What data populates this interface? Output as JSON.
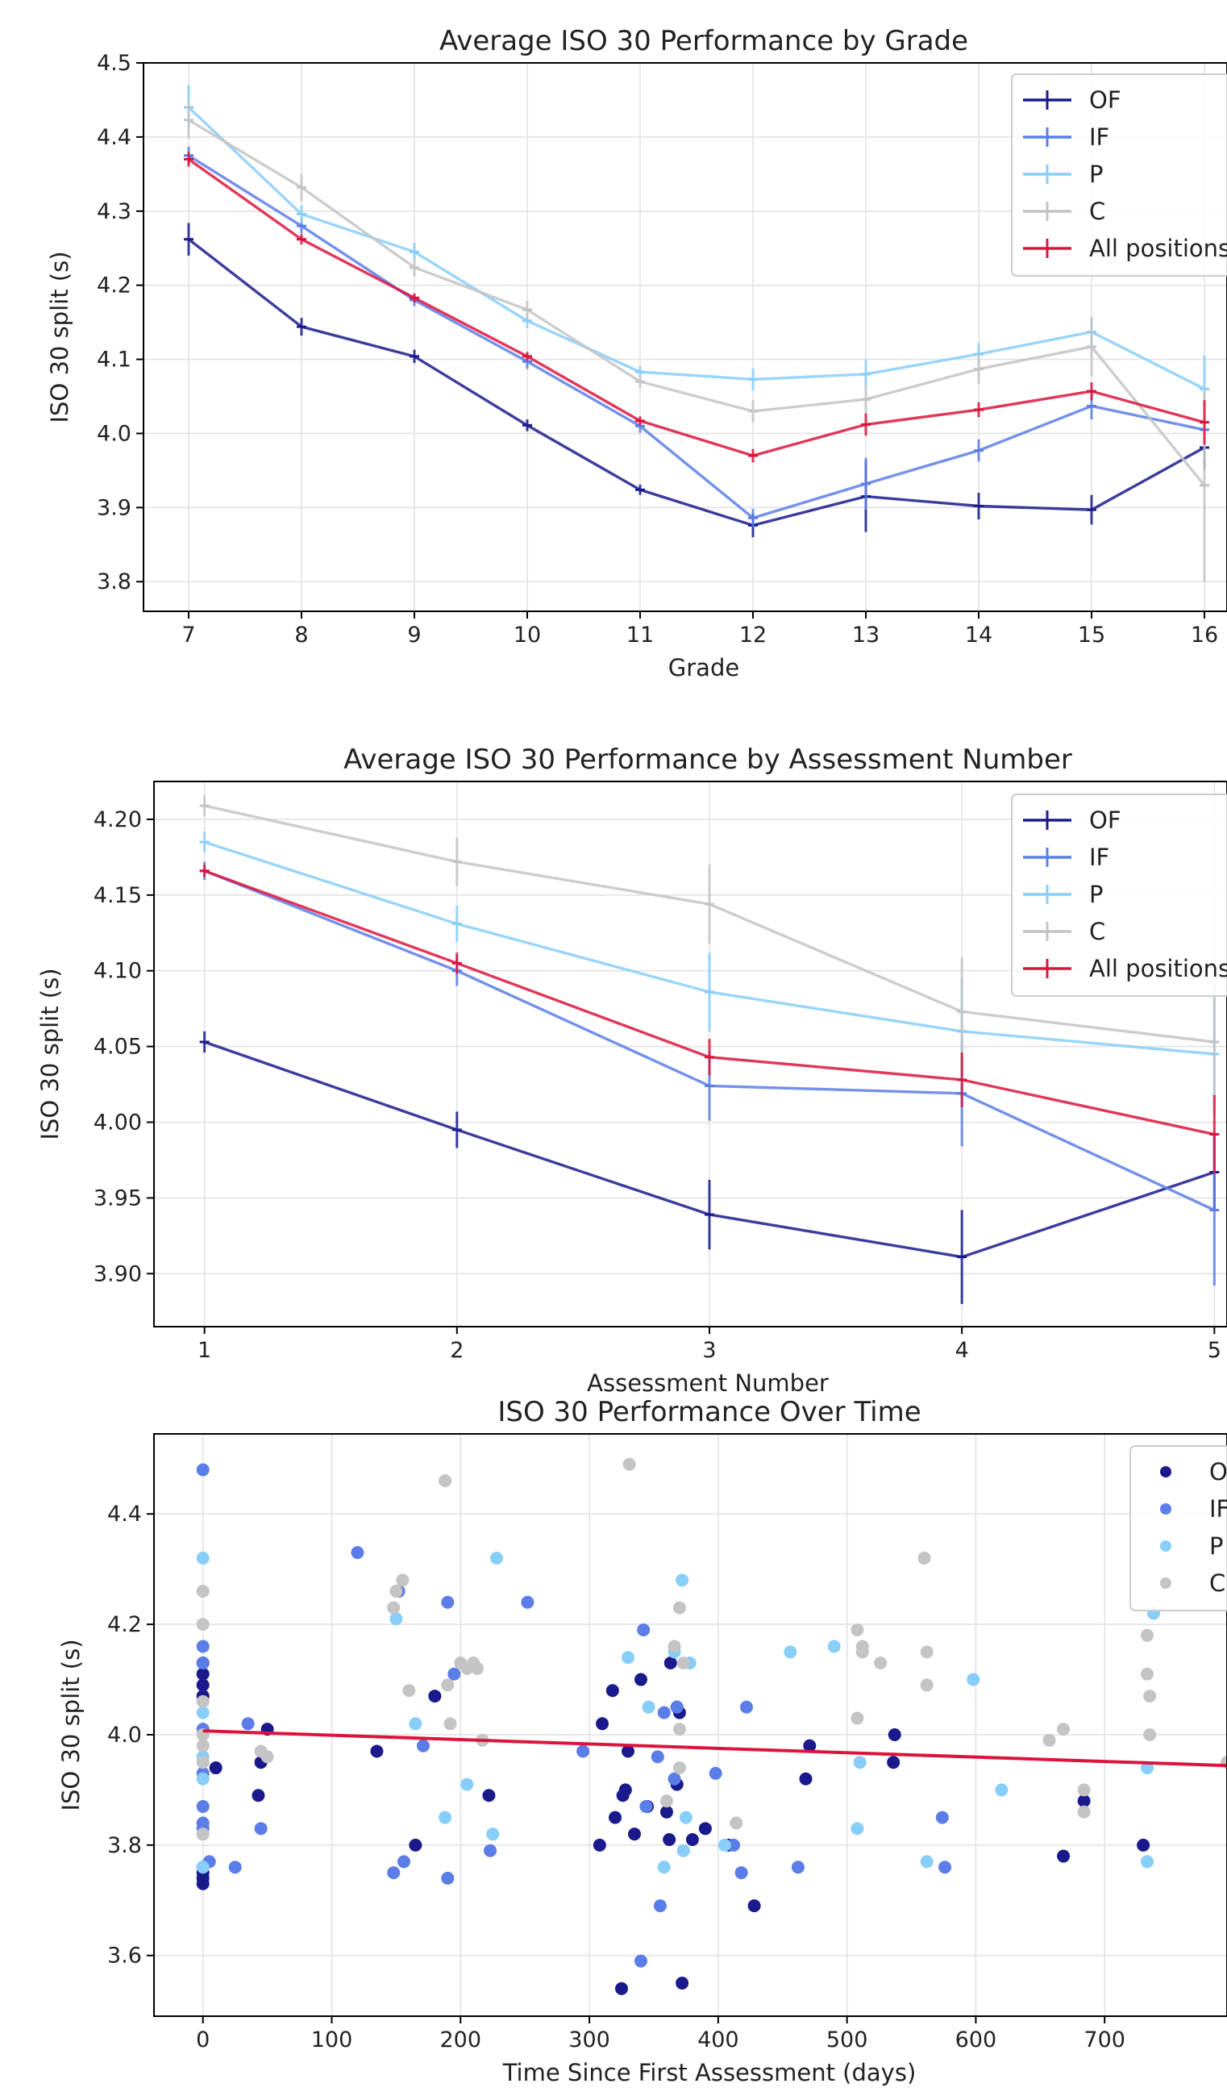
{
  "chart_data": [
    {
      "type": "line",
      "title": "Average ISO 30 Performance by Grade",
      "xlabel": "Grade",
      "ylabel": "ISO 30 split (s)",
      "x": [
        7,
        8,
        9,
        10,
        11,
        12,
        13,
        14,
        15,
        16
      ],
      "xlim": [
        6.6,
        16.2
      ],
      "ylim": [
        3.76,
        4.5
      ],
      "xticks": [
        7,
        8,
        9,
        10,
        11,
        12,
        13,
        14,
        15,
        16
      ],
      "yticks": [
        3.8,
        3.9,
        4.0,
        4.1,
        4.2,
        4.3,
        4.4,
        4.5
      ],
      "ytick_labels": [
        "3.8",
        "3.9",
        "4.0",
        "4.1",
        "4.2",
        "4.3",
        "4.4",
        "4.5"
      ],
      "grid": true,
      "legend_position": "top-right",
      "series": [
        {
          "name": "OF",
          "color": "#1a1a8c",
          "values": [
            4.262,
            4.144,
            4.104,
            4.011,
            3.924,
            3.876,
            3.915,
            3.902,
            3.897,
            3.981
          ],
          "errors": [
            0.022,
            0.012,
            0.009,
            0.008,
            0.007,
            0.016,
            0.048,
            0.018,
            0.02,
            0.03
          ]
        },
        {
          "name": "IF",
          "color": "#5b7de8",
          "values": [
            4.375,
            4.28,
            4.18,
            4.097,
            4.01,
            3.886,
            3.932,
            3.977,
            4.037,
            4.005
          ],
          "errors": [
            0.012,
            0.01,
            0.008,
            0.01,
            0.009,
            0.012,
            0.035,
            0.015,
            0.018,
            0.04
          ]
        },
        {
          "name": "P",
          "color": "#87cefa",
          "values": [
            4.44,
            4.296,
            4.245,
            4.152,
            4.083,
            4.073,
            4.08,
            4.107,
            4.137,
            4.06
          ],
          "errors": [
            0.03,
            0.012,
            0.012,
            0.01,
            0.008,
            0.015,
            0.02,
            0.015,
            0.02,
            0.045
          ]
        },
        {
          "name": "C",
          "color": "#c4c4c4",
          "values": [
            4.423,
            4.332,
            4.224,
            4.167,
            4.07,
            4.03,
            4.046,
            4.087,
            4.117,
            3.93
          ],
          "errors": [
            0.025,
            0.018,
            0.012,
            0.012,
            0.009,
            0.015,
            0.02,
            0.02,
            0.04,
            0.13
          ]
        },
        {
          "name": "All positions",
          "color": "#dc143c",
          "values": [
            4.37,
            4.262,
            4.183,
            4.104,
            4.017,
            3.97,
            4.012,
            4.032,
            4.057,
            4.015
          ],
          "errors": [
            0.01,
            0.007,
            0.006,
            0.006,
            0.006,
            0.009,
            0.015,
            0.01,
            0.012,
            0.03
          ]
        }
      ]
    },
    {
      "type": "line",
      "title": "Average ISO 30 Performance by Assessment Number",
      "xlabel": "Assessment Number",
      "ylabel": "ISO 30 split (s)",
      "x": [
        1,
        2,
        3,
        4,
        5
      ],
      "xlim": [
        0.8,
        5.05
      ],
      "ylim": [
        3.865,
        4.225
      ],
      "xticks": [
        1,
        2,
        3,
        4,
        5
      ],
      "yticks": [
        3.9,
        3.95,
        4.0,
        4.05,
        4.1,
        4.15,
        4.2
      ],
      "ytick_labels": [
        "3.90",
        "3.95",
        "4.00",
        "4.05",
        "4.10",
        "4.15",
        "4.20"
      ],
      "grid": true,
      "legend_position": "top-right",
      "series": [
        {
          "name": "OF",
          "color": "#1a1a8c",
          "values": [
            4.053,
            3.995,
            3.939,
            3.911,
            3.967
          ],
          "errors": [
            0.007,
            0.012,
            0.023,
            0.031,
            0.025
          ]
        },
        {
          "name": "IF",
          "color": "#5b7de8",
          "values": [
            4.166,
            4.1,
            4.024,
            4.019,
            3.942
          ],
          "errors": [
            0.006,
            0.01,
            0.023,
            0.035,
            0.05
          ]
        },
        {
          "name": "P",
          "color": "#87cefa",
          "values": [
            4.185,
            4.131,
            4.086,
            4.06,
            4.045
          ],
          "errors": [
            0.007,
            0.012,
            0.026,
            0.035,
            0.04
          ]
        },
        {
          "name": "C",
          "color": "#c4c4c4",
          "values": [
            4.209,
            4.172,
            4.144,
            4.073,
            4.053
          ],
          "errors": [
            0.007,
            0.016,
            0.026,
            0.036,
            0.04
          ]
        },
        {
          "name": "All positions",
          "color": "#dc143c",
          "values": [
            4.166,
            4.105,
            4.043,
            4.028,
            3.992
          ],
          "errors": [
            0.004,
            0.007,
            0.012,
            0.018,
            0.026
          ]
        }
      ]
    },
    {
      "type": "scatter",
      "title": "ISO 30 Performance Over Time",
      "xlabel": "Time Since First Assessment (days)",
      "ylabel": "ISO 30 split (s)",
      "xlim": [
        -38,
        795
      ],
      "ylim": [
        3.49,
        4.545
      ],
      "xticks": [
        0,
        100,
        200,
        300,
        400,
        500,
        600,
        700
      ],
      "yticks": [
        3.6,
        3.8,
        4.0,
        4.2,
        4.4
      ],
      "ytick_labels": [
        "3.6",
        "3.8",
        "4.0",
        "4.2",
        "4.4"
      ],
      "grid": true,
      "legend_position": "top-right",
      "trendline": {
        "color": "#dc143c",
        "x": [
          0,
          795
        ],
        "y": [
          4.007,
          3.944
        ]
      },
      "series": [
        {
          "name": "OF",
          "color": "#1a1a8c",
          "points": [
            [
              0,
              3.73
            ],
            [
              0,
              3.74
            ],
            [
              0,
              3.76
            ],
            [
              0,
              3.75
            ],
            [
              0,
              4.07
            ],
            [
              0,
              4.09
            ],
            [
              0,
              4.11
            ],
            [
              0,
              4.13
            ],
            [
              10,
              3.94
            ],
            [
              43,
              3.89
            ],
            [
              45,
              3.95
            ],
            [
              50,
              4.01
            ],
            [
              135,
              3.97
            ],
            [
              165,
              3.8
            ],
            [
              180,
              4.07
            ],
            [
              222,
              3.89
            ],
            [
              308,
              3.8
            ],
            [
              310,
              4.02
            ],
            [
              318,
              4.08
            ],
            [
              320,
              3.85
            ],
            [
              325,
              3.54
            ],
            [
              326,
              3.89
            ],
            [
              328,
              3.9
            ],
            [
              330,
              3.97
            ],
            [
              335,
              3.82
            ],
            [
              340,
              4.1
            ],
            [
              345,
              3.87
            ],
            [
              360,
              3.86
            ],
            [
              362,
              3.81
            ],
            [
              363,
              4.13
            ],
            [
              368,
              4.05
            ],
            [
              368,
              3.91
            ],
            [
              370,
              4.04
            ],
            [
              372,
              3.55
            ],
            [
              380,
              3.81
            ],
            [
              390,
              3.83
            ],
            [
              408,
              3.8
            ],
            [
              428,
              3.69
            ],
            [
              468,
              3.92
            ],
            [
              471,
              3.98
            ],
            [
              537,
              4.0
            ],
            [
              536,
              3.95
            ],
            [
              668,
              3.78
            ],
            [
              684,
              3.88
            ],
            [
              730,
              3.8
            ]
          ]
        },
        {
          "name": "IF",
          "color": "#5b7de8",
          "points": [
            [
              0,
              4.48
            ],
            [
              0,
              4.16
            ],
            [
              0,
              4.13
            ],
            [
              0,
              4.01
            ],
            [
              0,
              3.93
            ],
            [
              0,
              3.87
            ],
            [
              0,
              3.84
            ],
            [
              0,
              3.83
            ],
            [
              5,
              3.77
            ],
            [
              25,
              3.76
            ],
            [
              35,
              4.02
            ],
            [
              45,
              3.83
            ],
            [
              120,
              4.33
            ],
            [
              148,
              3.75
            ],
            [
              152,
              4.26
            ],
            [
              156,
              3.77
            ],
            [
              171,
              3.98
            ],
            [
              190,
              4.24
            ],
            [
              190,
              3.74
            ],
            [
              195,
              4.11
            ],
            [
              223,
              3.79
            ],
            [
              252,
              4.24
            ],
            [
              295,
              3.97
            ],
            [
              340,
              3.59
            ],
            [
              342,
              4.19
            ],
            [
              344,
              3.87
            ],
            [
              353,
              3.96
            ],
            [
              355,
              3.69
            ],
            [
              358,
              4.04
            ],
            [
              366,
              3.92
            ],
            [
              368,
              4.05
            ],
            [
              398,
              3.93
            ],
            [
              412,
              3.8
            ],
            [
              418,
              3.75
            ],
            [
              422,
              4.05
            ],
            [
              462,
              3.76
            ],
            [
              574,
              3.85
            ],
            [
              576,
              3.76
            ]
          ]
        },
        {
          "name": "P",
          "color": "#87cefa",
          "points": [
            [
              0,
              4.32
            ],
            [
              0,
              4.04
            ],
            [
              0,
              3.96
            ],
            [
              0,
              3.92
            ],
            [
              0,
              3.82
            ],
            [
              0,
              3.76
            ],
            [
              150,
              4.21
            ],
            [
              165,
              4.02
            ],
            [
              188,
              3.85
            ],
            [
              205,
              3.91
            ],
            [
              225,
              3.82
            ],
            [
              228,
              4.32
            ],
            [
              330,
              4.14
            ],
            [
              346,
              4.05
            ],
            [
              358,
              3.76
            ],
            [
              366,
              4.15
            ],
            [
              372,
              4.28
            ],
            [
              375,
              3.85
            ],
            [
              378,
              4.13
            ],
            [
              373,
              3.79
            ],
            [
              405,
              3.8
            ],
            [
              456,
              4.15
            ],
            [
              490,
              4.16
            ],
            [
              508,
              3.83
            ],
            [
              510,
              3.95
            ],
            [
              562,
              3.77
            ],
            [
              598,
              4.1
            ],
            [
              620,
              3.9
            ],
            [
              733,
              3.94
            ],
            [
              733,
              3.77
            ],
            [
              738,
              4.22
            ]
          ]
        },
        {
          "name": "C",
          "color": "#c4c4c4",
          "points": [
            [
              0,
              4.26
            ],
            [
              0,
              4.2
            ],
            [
              0,
              4.06
            ],
            [
              0,
              4.0
            ],
            [
              0,
              3.98
            ],
            [
              0,
              3.95
            ],
            [
              0,
              3.82
            ],
            [
              45,
              3.97
            ],
            [
              50,
              3.96
            ],
            [
              148,
              4.23
            ],
            [
              150,
              4.26
            ],
            [
              155,
              4.28
            ],
            [
              160,
              4.08
            ],
            [
              188,
              4.46
            ],
            [
              190,
              4.09
            ],
            [
              192,
              4.02
            ],
            [
              200,
              4.13
            ],
            [
              205,
              4.12
            ],
            [
              210,
              4.13
            ],
            [
              213,
              4.12
            ],
            [
              217,
              3.99
            ],
            [
              331,
              4.49
            ],
            [
              360,
              3.88
            ],
            [
              366,
              4.16
            ],
            [
              370,
              3.94
            ],
            [
              370,
              4.23
            ],
            [
              370,
              4.01
            ],
            [
              373,
              4.13
            ],
            [
              414,
              3.84
            ],
            [
              508,
              4.19
            ],
            [
              508,
              4.03
            ],
            [
              512,
              4.16
            ],
            [
              512,
              4.15
            ],
            [
              526,
              4.13
            ],
            [
              560,
              4.32
            ],
            [
              562,
              4.15
            ],
            [
              562,
              4.09
            ],
            [
              657,
              3.99
            ],
            [
              668,
              4.01
            ],
            [
              684,
              3.9
            ],
            [
              684,
              3.86
            ],
            [
              733,
              4.18
            ],
            [
              733,
              4.11
            ],
            [
              735,
              4.07
            ],
            [
              735,
              4.0
            ],
            [
              795,
              3.95
            ]
          ]
        }
      ]
    }
  ]
}
